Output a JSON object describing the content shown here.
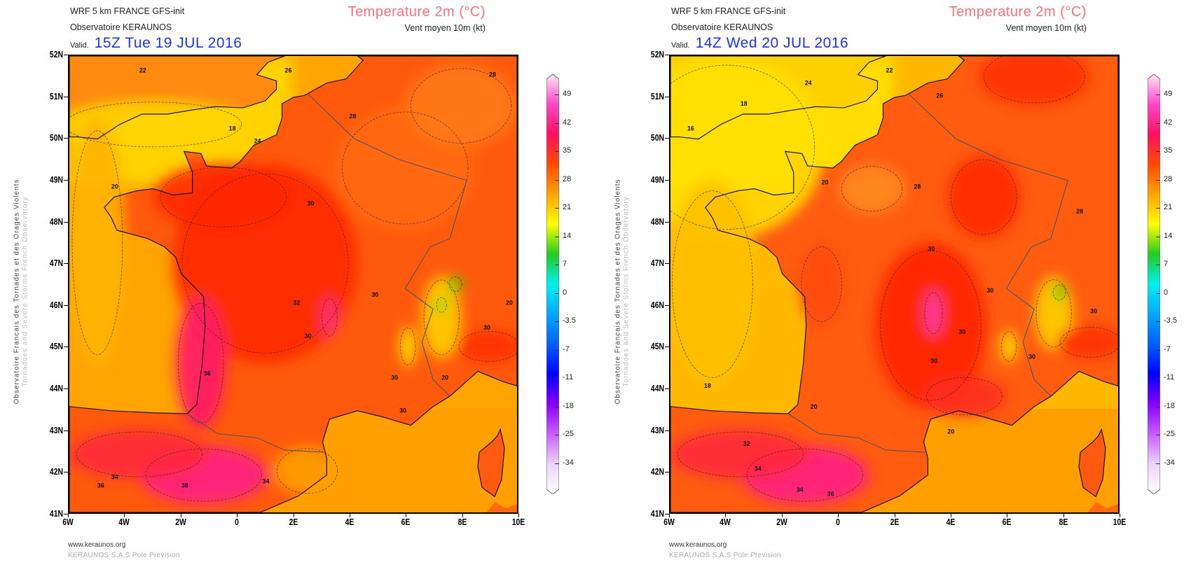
{
  "side_text": {
    "line1": "Observatoire Francais des Tornades et des Orages Violents",
    "line2": "Tornadoes and Severe Storms French Observatory"
  },
  "footer": {
    "website": "www.keraunos.org",
    "company": "KERAUNOS S.A.S Pole Prevision"
  },
  "axes": {
    "lat_labels": [
      "52N",
      "51N",
      "50N",
      "49N",
      "48N",
      "47N",
      "46N",
      "45N",
      "44N",
      "43N",
      "42N",
      "41N"
    ],
    "lon_labels": [
      "6W",
      "4W",
      "2W",
      "0",
      "2E",
      "4E",
      "6E",
      "8E",
      "10E"
    ]
  },
  "colorbar": {
    "labels": [
      "49",
      "42",
      "35",
      "28",
      "21",
      "14",
      "7",
      "0",
      "-3.5",
      "-7",
      "-11",
      "-18",
      "-25",
      "-34"
    ],
    "colors": [
      "#fde6f6",
      "#ff48c8",
      "#ff1060",
      "#ff4a00",
      "#ffa400",
      "#ffff00",
      "#22cc22",
      "#00f0f0",
      "#00a8ff",
      "#0060ff",
      "#0000ff",
      "#8800ff",
      "#c860ff",
      "#ecd4fb",
      "#ffffff"
    ]
  },
  "panels": [
    {
      "model_line": "WRF 5 km FRANCE   GFS-init",
      "observatory": "Observatoire KERAUNOS",
      "valid_label": "Valid.",
      "valid_date": "15Z Tue 19 JUL 2016",
      "title": "Temperature 2m (°C)",
      "subtitle": "Vent moyen 10m (kt)",
      "contour_labels": [
        "20",
        "22",
        "18",
        "24",
        "26",
        "28",
        "30",
        "30",
        "30",
        "30",
        "32",
        "34",
        "36",
        "36",
        "38",
        "34",
        "20",
        "30",
        "30",
        "20",
        "28"
      ]
    },
    {
      "model_line": "WRF 5 km FRANCE   GFS-init",
      "observatory": "Observatoire KERAUNOS",
      "valid_label": "Valid.",
      "valid_date": "14Z Wed 20 JUL 2016",
      "title": "Temperature 2m (°C)",
      "subtitle": "Vent moyen 10m (kt)",
      "contour_labels": [
        "20",
        "16",
        "18",
        "24",
        "22",
        "26",
        "28",
        "30",
        "30",
        "30",
        "30",
        "32",
        "34",
        "34",
        "36",
        "20",
        "18",
        "30",
        "30",
        "20",
        "28"
      ]
    }
  ]
}
